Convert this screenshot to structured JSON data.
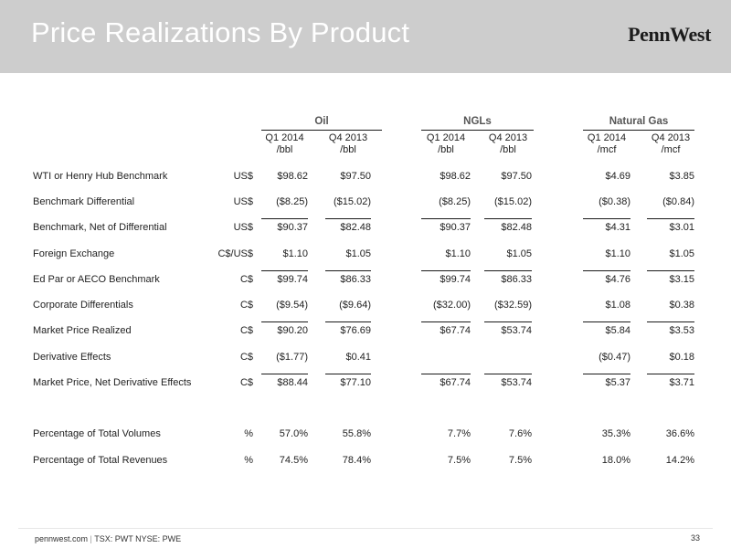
{
  "header": {
    "title": "Price Realizations By Product",
    "logo": "PennWest"
  },
  "groups": [
    {
      "name": "Oil",
      "periods": [
        "Q1 2014",
        "Q4 2013"
      ],
      "units": [
        "/bbl",
        "/bbl"
      ]
    },
    {
      "name": "NGLs",
      "periods": [
        "Q1 2014",
        "Q4 2013"
      ],
      "units": [
        "/bbl",
        "/bbl"
      ]
    },
    {
      "name": "Natural Gas",
      "periods": [
        "Q1 2014",
        "Q4 2013"
      ],
      "units": [
        "/mcf",
        "/mcf"
      ]
    }
  ],
  "rows": [
    {
      "label": "WTI or Henry Hub Benchmark",
      "currency": "US$",
      "values": [
        "$98.62",
        "$97.50",
        "$98.62",
        "$97.50",
        "$4.69",
        "$3.85"
      ]
    },
    {
      "label": "Benchmark Differential",
      "currency": "US$",
      "values": [
        "($8.25)",
        "($15.02)",
        "($8.25)",
        "($15.02)",
        "($0.38)",
        "($0.84)"
      ]
    },
    {
      "label": "Benchmark, Net of Differential",
      "currency": "US$",
      "values": [
        "$90.37",
        "$82.48",
        "$90.37",
        "$82.48",
        "$4.31",
        "$3.01"
      ]
    },
    {
      "label": "Foreign Exchange",
      "currency": "C$/US$",
      "values": [
        "$1.10",
        "$1.05",
        "$1.10",
        "$1.05",
        "$1.10",
        "$1.05"
      ]
    },
    {
      "label": "Ed Par or AECO Benchmark",
      "currency": "C$",
      "values": [
        "$99.74",
        "$86.33",
        "$99.74",
        "$86.33",
        "$4.76",
        "$3.15"
      ]
    },
    {
      "label": "Corporate Differentials",
      "currency": "C$",
      "values": [
        "($9.54)",
        "($9.64)",
        "($32.00)",
        "($32.59)",
        "$1.08",
        "$0.38"
      ]
    },
    {
      "label": "Market Price Realized",
      "currency": "C$",
      "values": [
        "$90.20",
        "$76.69",
        "$67.74",
        "$53.74",
        "$5.84",
        "$3.53"
      ]
    },
    {
      "label": "Derivative Effects",
      "currency": "C$",
      "values": [
        "($1.77)",
        "$0.41",
        "",
        "",
        "($0.47)",
        "$0.18"
      ]
    },
    {
      "label": "Market Price, Net Derivative Effects",
      "currency": "C$",
      "values": [
        "$88.44",
        "$77.10",
        "$67.74",
        "$53.74",
        "$5.37",
        "$3.71"
      ]
    },
    {
      "label": "Percentage of Total Volumes",
      "currency": "%",
      "values": [
        "57.0%",
        "55.8%",
        "7.7%",
        "7.6%",
        "35.3%",
        "36.6%"
      ]
    },
    {
      "label": "Percentage of Total Revenues",
      "currency": "%",
      "values": [
        "74.5%",
        "78.4%",
        "7.5%",
        "7.5%",
        "18.0%",
        "14.2%"
      ]
    }
  ],
  "footer": {
    "site": "pennwest.com",
    "separator": "|",
    "tickers": "TSX: PWT  NYSE: PWE",
    "page": "33"
  }
}
